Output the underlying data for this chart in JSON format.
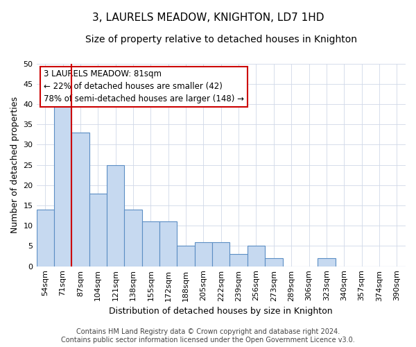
{
  "title": "3, LAURELS MEADOW, KNIGHTON, LD7 1HD",
  "subtitle": "Size of property relative to detached houses in Knighton",
  "xlabel": "Distribution of detached houses by size in Knighton",
  "ylabel": "Number of detached properties",
  "bar_labels": [
    "54sqm",
    "71sqm",
    "87sqm",
    "104sqm",
    "121sqm",
    "138sqm",
    "155sqm",
    "172sqm",
    "188sqm",
    "205sqm",
    "222sqm",
    "239sqm",
    "256sqm",
    "273sqm",
    "289sqm",
    "306sqm",
    "323sqm",
    "340sqm",
    "357sqm",
    "374sqm",
    "390sqm"
  ],
  "bar_values": [
    14,
    40,
    33,
    18,
    25,
    14,
    11,
    11,
    5,
    6,
    6,
    3,
    5,
    2,
    0,
    0,
    2,
    0,
    0,
    0,
    0
  ],
  "bar_color": "#c6d9f0",
  "bar_edge_color": "#5b8ec4",
  "vline_x": 1.5,
  "vline_color": "#cc0000",
  "ylim": [
    0,
    50
  ],
  "yticks": [
    0,
    5,
    10,
    15,
    20,
    25,
    30,
    35,
    40,
    45,
    50
  ],
  "annotation_box_text": "3 LAURELS MEADOW: 81sqm\n← 22% of detached houses are smaller (42)\n78% of semi-detached houses are larger (148) →",
  "annotation_box_color": "#cc0000",
  "footer_line1": "Contains HM Land Registry data © Crown copyright and database right 2024.",
  "footer_line2": "Contains public sector information licensed under the Open Government Licence v3.0.",
  "title_fontsize": 11,
  "subtitle_fontsize": 10,
  "axis_label_fontsize": 9,
  "tick_fontsize": 8,
  "annotation_fontsize": 8.5,
  "footer_fontsize": 7,
  "background_color": "#ffffff",
  "grid_color": "#d0d8e8"
}
